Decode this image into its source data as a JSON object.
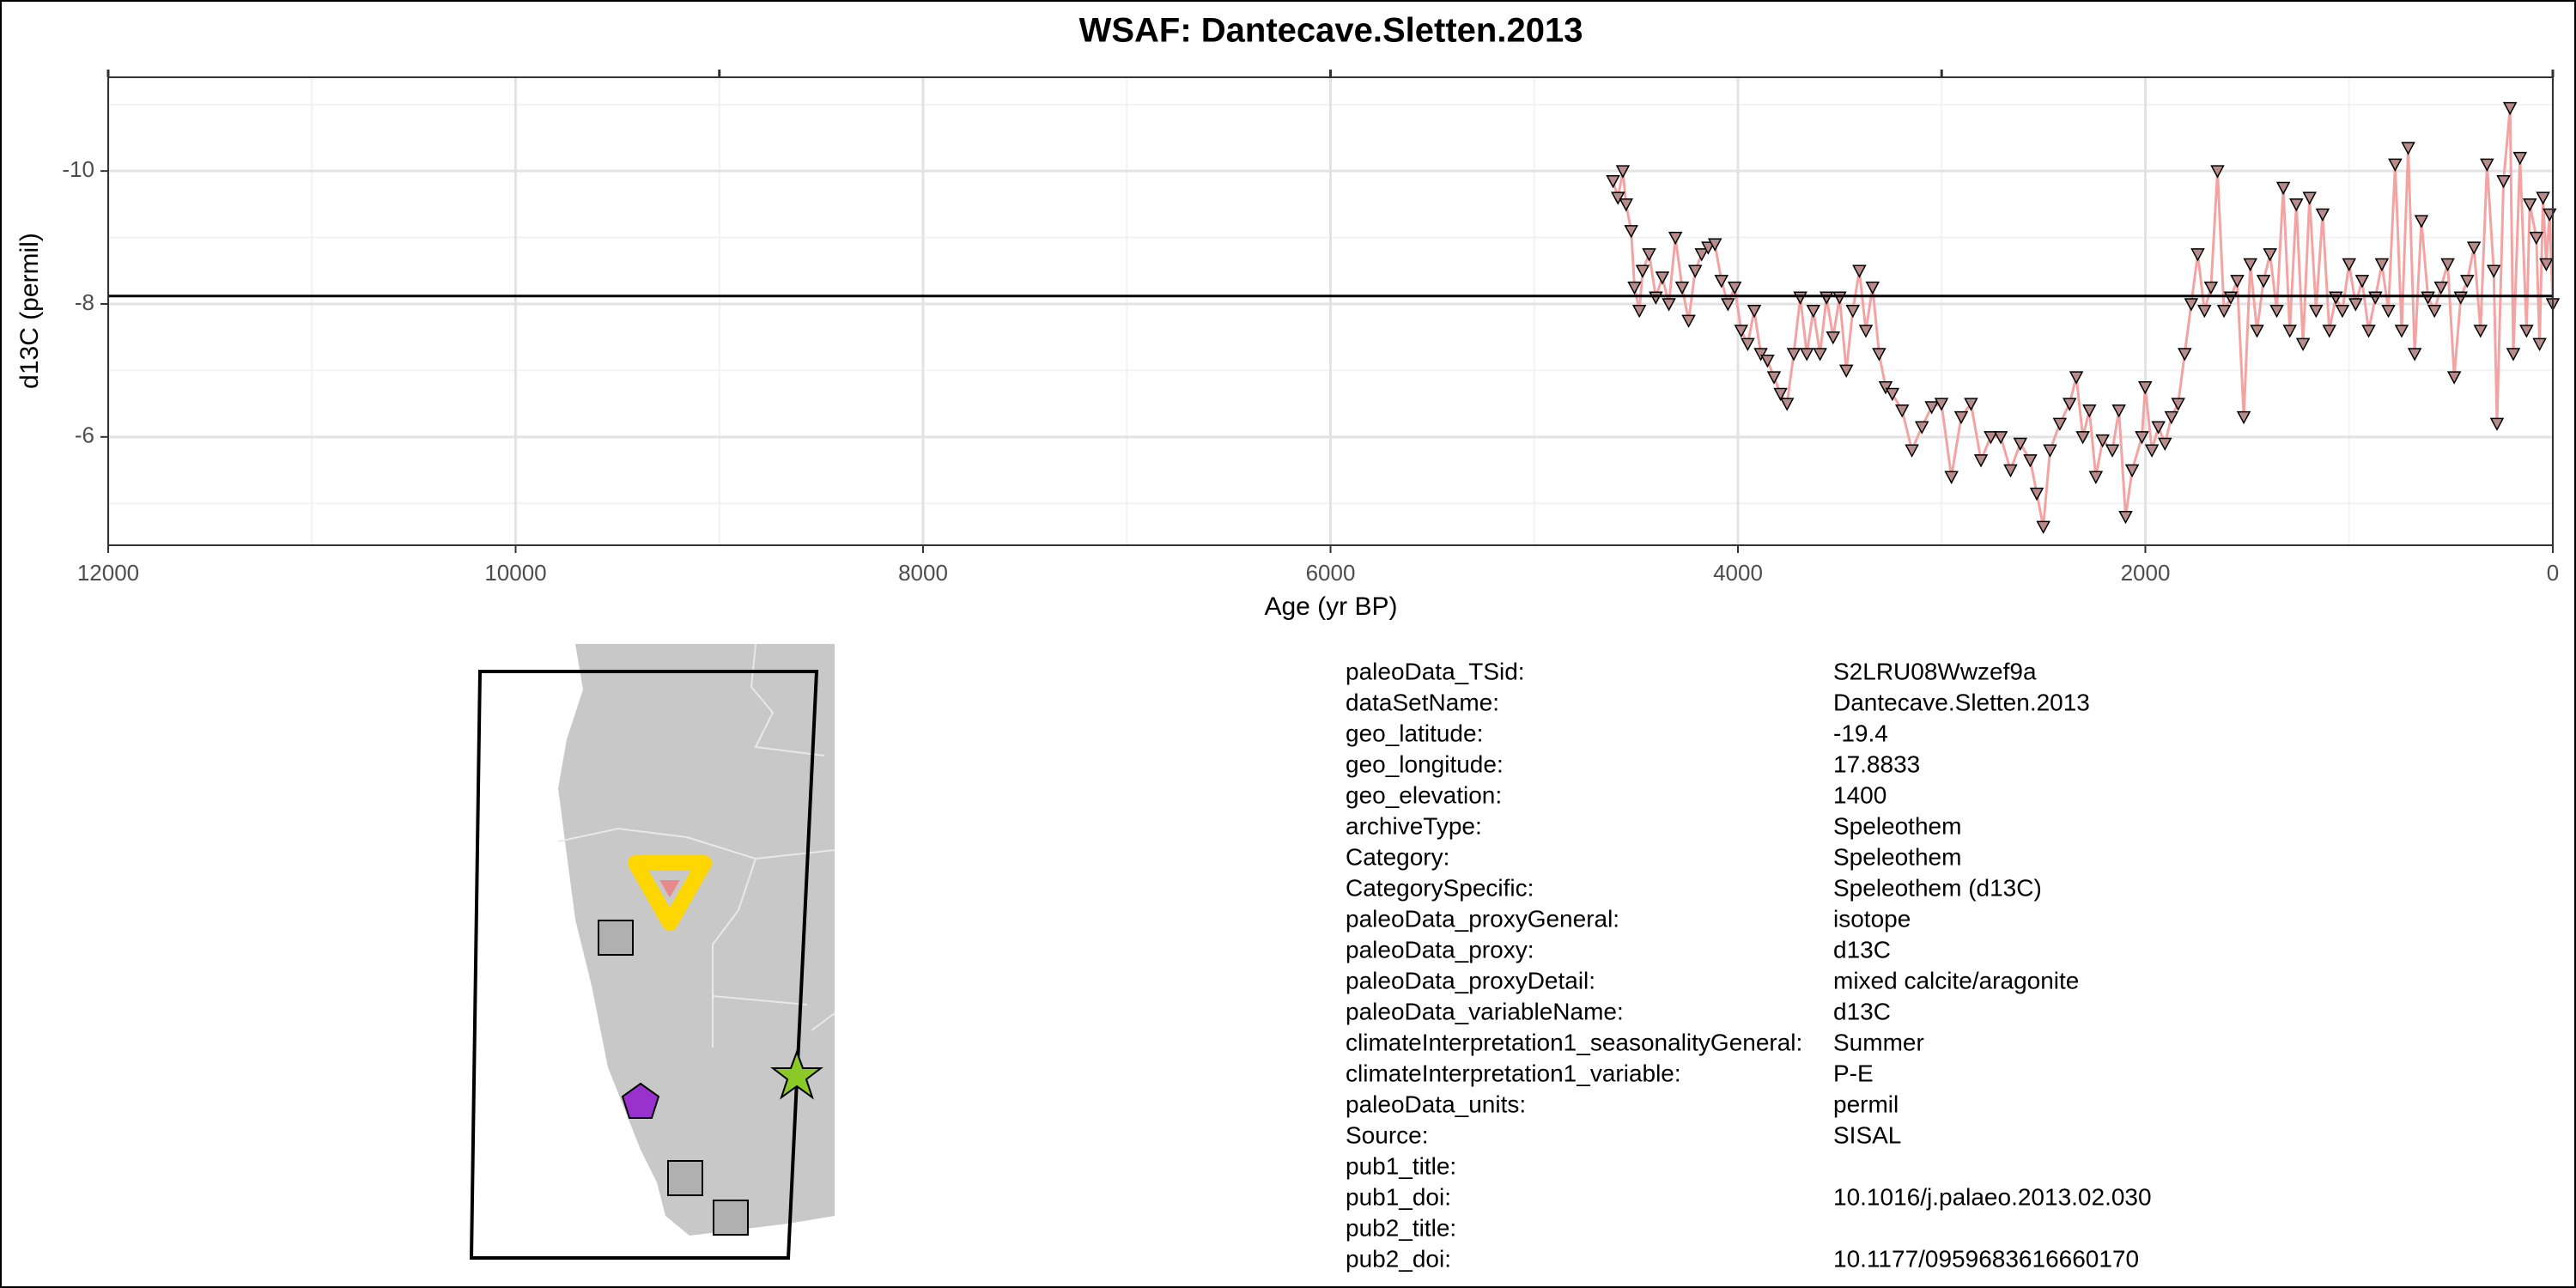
{
  "chart_data": {
    "type": "line",
    "title": "WSAF: Dantecave.Sletten.2013",
    "x_label": "Age (yr BP)",
    "y_label": "d13C (permil)",
    "xlim": [
      12000,
      0
    ],
    "ylim": [
      -4.37,
      -11.41
    ],
    "xticks": [
      12000,
      10000,
      8000,
      6000,
      4000,
      2000,
      0
    ],
    "x_minor_ticks": [
      11000,
      9000,
      7000,
      5000,
      3000,
      1000
    ],
    "top_xticks": [
      12000,
      9000,
      6000,
      3000,
      0
    ],
    "yticks": [
      -10,
      -8,
      -6
    ],
    "y_minor_ticks": [
      -11,
      -9,
      -7,
      -5
    ],
    "grid": true,
    "hline": -8.12,
    "series": [
      {
        "color": "#f4a3a3",
        "marker_color": "#b98c8c",
        "x": [
          4613,
          4589,
          4565,
          4549,
          4524,
          4508,
          4484,
          4468,
          4436,
          4403,
          4371,
          4339,
          4307,
          4274,
          4242,
          4210,
          4178,
          4146,
          4113,
          4081,
          4049,
          4016,
          3984,
          3952,
          3920,
          3888,
          3855,
          3823,
          3791,
          3759,
          3726,
          3694,
          3662,
          3630,
          3597,
          3565,
          3533,
          3501,
          3468,
          3436,
          3404,
          3372,
          3339,
          3307,
          3275,
          3242,
          3194,
          3146,
          3097,
          3049,
          3001,
          2952,
          2904,
          2856,
          2807,
          2759,
          2710,
          2662,
          2614,
          2565,
          2533,
          2501,
          2468,
          2420,
          2372,
          2339,
          2307,
          2275,
          2243,
          2210,
          2162,
          2130,
          2097,
          2065,
          2017,
          2001,
          1968,
          1936,
          1904,
          1872,
          1839,
          1807,
          1775,
          1743,
          1710,
          1678,
          1646,
          1614,
          1581,
          1549,
          1517,
          1485,
          1452,
          1420,
          1388,
          1355,
          1323,
          1291,
          1259,
          1226,
          1194,
          1162,
          1130,
          1097,
          1065,
          1033,
          1000,
          968,
          936,
          904,
          871,
          839,
          807,
          774,
          742,
          710,
          678,
          645,
          613,
          581,
          549,
          516,
          484,
          452,
          420,
          387,
          355,
          323,
          290,
          274,
          242,
          210,
          194,
          161,
          129,
          113,
          81,
          65,
          48,
          32,
          16,
          0
        ],
        "values": [
          -9.85,
          -9.6,
          -10.0,
          -9.5,
          -9.1,
          -8.25,
          -7.9,
          -8.5,
          -8.75,
          -8.1,
          -8.4,
          -8.0,
          -9.0,
          -8.25,
          -7.75,
          -8.5,
          -8.75,
          -8.85,
          -8.9,
          -8.35,
          -8.0,
          -8.25,
          -7.6,
          -7.4,
          -7.9,
          -7.25,
          -7.15,
          -6.9,
          -6.65,
          -6.5,
          -7.25,
          -8.1,
          -7.25,
          -7.9,
          -7.25,
          -8.1,
          -7.5,
          -8.1,
          -7.0,
          -7.9,
          -8.5,
          -7.6,
          -8.25,
          -7.25,
          -6.75,
          -6.65,
          -6.4,
          -5.8,
          -6.15,
          -6.45,
          -6.5,
          -5.4,
          -6.3,
          -6.5,
          -5.65,
          -6.0,
          -6.0,
          -5.5,
          -5.9,
          -5.65,
          -5.15,
          -4.65,
          -5.8,
          -6.2,
          -6.5,
          -6.9,
          -6.0,
          -6.4,
          -5.4,
          -5.95,
          -5.8,
          -6.4,
          -4.8,
          -5.5,
          -6.0,
          -6.75,
          -5.8,
          -6.15,
          -5.9,
          -6.3,
          -6.5,
          -7.25,
          -8.0,
          -8.75,
          -7.9,
          -8.25,
          -10.0,
          -7.9,
          -8.1,
          -8.35,
          -6.3,
          -8.6,
          -7.6,
          -8.35,
          -8.75,
          -7.9,
          -9.75,
          -7.6,
          -9.5,
          -7.4,
          -9.6,
          -7.9,
          -9.35,
          -7.6,
          -8.1,
          -7.9,
          -8.6,
          -8.0,
          -8.35,
          -7.6,
          -8.1,
          -8.6,
          -7.9,
          -10.1,
          -7.6,
          -10.35,
          -7.25,
          -9.25,
          -8.1,
          -7.9,
          -8.25,
          -8.6,
          -6.9,
          -8.1,
          -8.35,
          -8.85,
          -7.6,
          -10.1,
          -8.5,
          -6.2,
          -9.85,
          -10.95,
          -7.25,
          -10.2,
          -7.6,
          -9.5,
          -9.0,
          -7.4,
          -9.6,
          -8.6,
          -9.35,
          -8.0
        ]
      }
    ]
  },
  "metadata": {
    "rows": [
      [
        "paleoData_TSid:",
        "S2LRU08Wwzef9a"
      ],
      [
        "dataSetName:",
        "Dantecave.Sletten.2013"
      ],
      [
        "geo_latitude:",
        "-19.4"
      ],
      [
        "geo_longitude:",
        "17.8833"
      ],
      [
        "geo_elevation:",
        "1400"
      ],
      [
        "archiveType:",
        "Speleothem"
      ],
      [
        "Category:",
        "Speleothem"
      ],
      [
        "CategorySpecific:",
        "Speleothem (d13C)"
      ],
      [
        "paleoData_proxyGeneral:",
        "isotope"
      ],
      [
        "paleoData_proxy:",
        "d13C"
      ],
      [
        "paleoData_proxyDetail:",
        "mixed calcite/aragonite"
      ],
      [
        "paleoData_variableName:",
        "d13C"
      ],
      [
        "climateInterpretation1_seasonalityGeneral:",
        "Summer"
      ],
      [
        "climateInterpretation1_variable:",
        "P-E"
      ],
      [
        "paleoData_units:",
        "permil"
      ],
      [
        "Source:",
        "SISAL"
      ],
      [
        "pub1_title:"
      ],
      [
        "pub1_doi:",
        "10.1016/j.palaeo.2013.02.030"
      ],
      [
        "pub2_title:"
      ],
      [
        "pub2_doi:",
        "10.1177/0959683616660170"
      ]
    ]
  }
}
